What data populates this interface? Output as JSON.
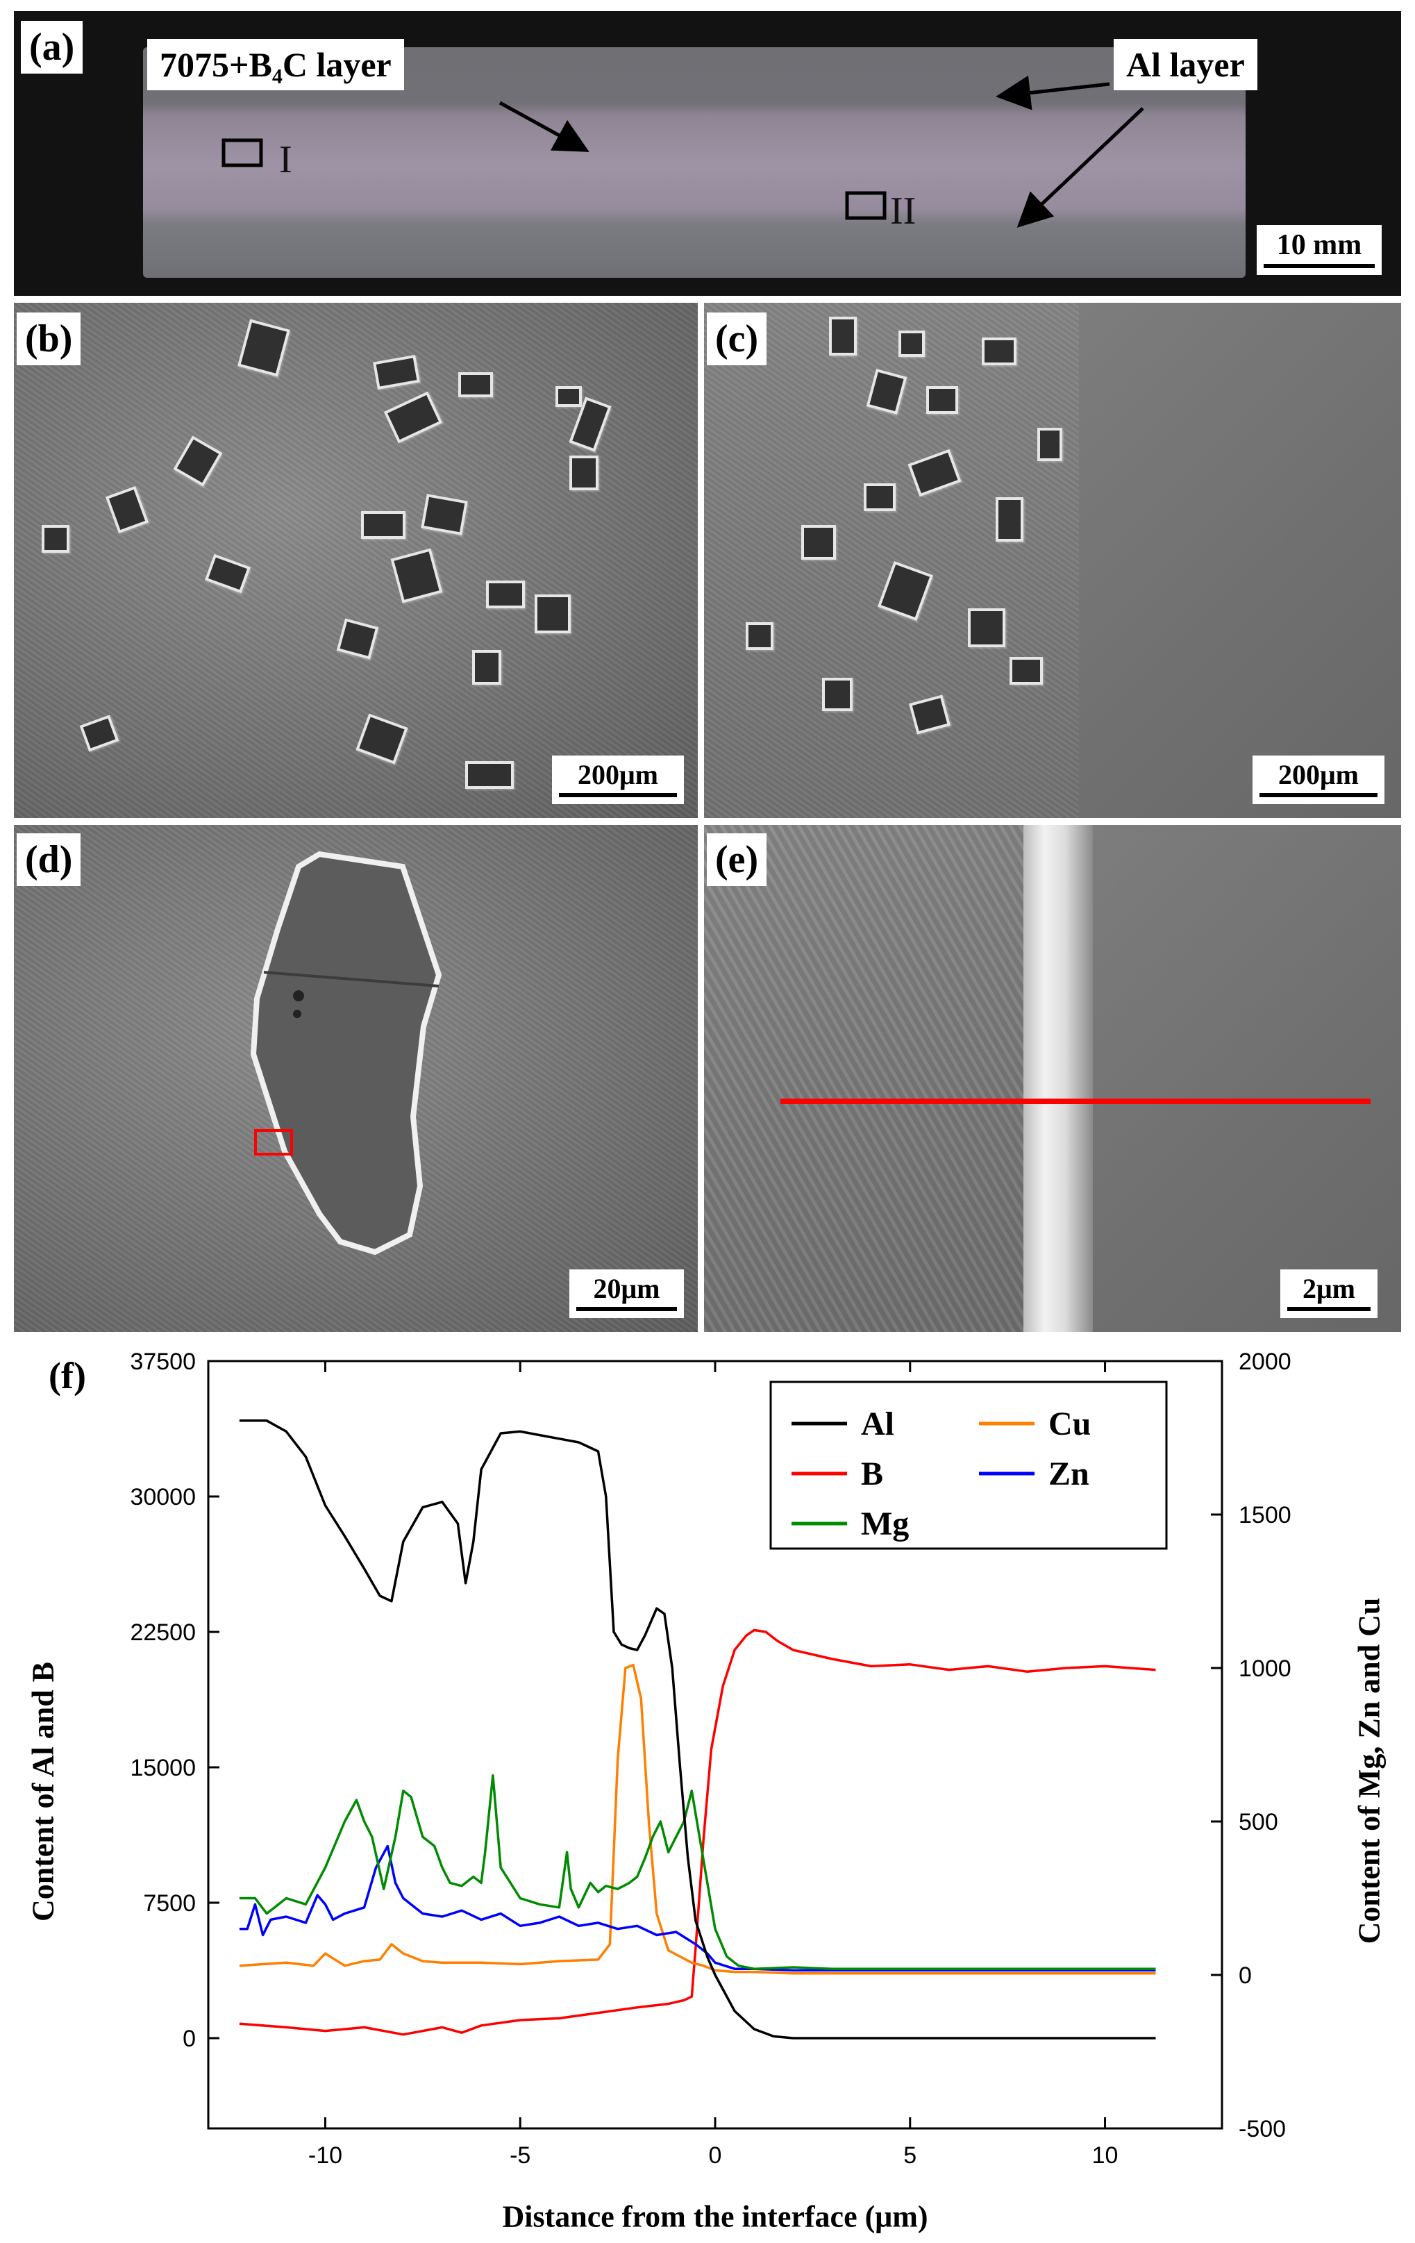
{
  "panels": {
    "a": {
      "label": "(a)",
      "callout_composite": "7075+B₄C layer",
      "callout_al": "Al layer",
      "region_1": "I",
      "region_2": "II",
      "scale": "10 mm"
    },
    "b": {
      "label": "(b)",
      "scale": "200μm"
    },
    "c": {
      "label": "(c)",
      "scale": "200μm"
    },
    "d": {
      "label": "(d)",
      "scale": "20μm"
    },
    "e": {
      "label": "(e)",
      "scale": "2μm"
    },
    "f": {
      "label": "(f)"
    }
  },
  "colors": {
    "Al": "#000000",
    "B": "#ff0000",
    "Cu": "#ff7f00",
    "Zn": "#0000ff",
    "Mg": "#008b00",
    "linescan": "#ff0000"
  },
  "chart_data": {
    "type": "line",
    "xlabel": "Distance from the interface (μm)",
    "ylabel": "Content of Al and B",
    "y2label": "Content of Mg, Zn and Cu",
    "xlim": [
      -13,
      13
    ],
    "ylim": [
      -5000,
      37500
    ],
    "y2lim": [
      -500,
      2000
    ],
    "xticks": [
      -10,
      -5,
      0,
      5,
      10
    ],
    "xtick_labels": [
      "-10",
      "-5",
      "0",
      "5",
      "10"
    ],
    "yticks": [
      0,
      7500,
      15000,
      22500,
      30000,
      37500
    ],
    "ytick_labels": [
      "0",
      "7500",
      "15000",
      "22500",
      "30000",
      "37500"
    ],
    "y2ticks": [
      -500,
      0,
      500,
      1000,
      1500,
      2000
    ],
    "y2tick_labels": [
      "-500",
      "0",
      "500",
      "1000",
      "1500",
      "2000"
    ],
    "legend_position": "top-right",
    "series": [
      {
        "name": "Al",
        "axis": "left",
        "x": [
          -12.2,
          -11.5,
          -11,
          -10.5,
          -10,
          -9.5,
          -9,
          -8.6,
          -8.3,
          -8,
          -7.5,
          -7,
          -6.6,
          -6.4,
          -6.2,
          -6,
          -5.5,
          -5,
          -4.5,
          -4,
          -3.5,
          -3,
          -2.8,
          -2.6,
          -2.4,
          -2.2,
          -2,
          -1.8,
          -1.5,
          -1.3,
          -1.1,
          -0.9,
          -0.7,
          -0.5,
          -0.2,
          0,
          0.5,
          1,
          1.5,
          2,
          3,
          5,
          7,
          9,
          11.3
        ],
        "y": [
          34200,
          34200,
          33600,
          32200,
          29500,
          27800,
          26000,
          24500,
          24200,
          27500,
          29400,
          29700,
          28500,
          25200,
          27500,
          31500,
          33500,
          33600,
          33400,
          33200,
          33000,
          32500,
          30000,
          22500,
          21800,
          21600,
          21500,
          22300,
          23800,
          23500,
          20500,
          15000,
          10000,
          6500,
          4500,
          3500,
          1500,
          500,
          100,
          0,
          0,
          0,
          0,
          0,
          0
        ]
      },
      {
        "name": "B",
        "axis": "left",
        "x": [
          -12.2,
          -11,
          -10,
          -9,
          -8,
          -7,
          -6.5,
          -6,
          -5,
          -4,
          -3,
          -2,
          -1.2,
          -0.8,
          -0.6,
          -0.5,
          -0.3,
          -0.1,
          0.2,
          0.5,
          0.8,
          1,
          1.3,
          1.6,
          2,
          3,
          4,
          5,
          6,
          7,
          8,
          9,
          10,
          11.3
        ],
        "y": [
          800,
          600,
          400,
          600,
          200,
          600,
          300,
          700,
          1000,
          1100,
          1400,
          1700,
          1900,
          2100,
          2300,
          5000,
          11000,
          16000,
          19500,
          21500,
          22300,
          22600,
          22500,
          22000,
          21500,
          21000,
          20600,
          20700,
          20400,
          20600,
          20300,
          20500,
          20600,
          20400
        ]
      },
      {
        "name": "Cu",
        "axis": "right",
        "x": [
          -12.2,
          -11,
          -10.3,
          -10,
          -9.5,
          -9,
          -8.6,
          -8.3,
          -8,
          -7.5,
          -7,
          -6,
          -5,
          -4,
          -3,
          -2.7,
          -2.5,
          -2.3,
          -2.1,
          -1.9,
          -1.7,
          -1.5,
          -1.2,
          -0.9,
          -0.6,
          -0.3,
          0,
          0.5,
          1,
          2,
          3,
          5,
          7,
          9,
          11.3
        ],
        "y": [
          30,
          40,
          30,
          70,
          30,
          45,
          50,
          100,
          70,
          45,
          40,
          40,
          35,
          45,
          50,
          100,
          700,
          1000,
          1010,
          900,
          500,
          200,
          80,
          60,
          40,
          30,
          15,
          10,
          10,
          5,
          5,
          5,
          5,
          5,
          5
        ]
      },
      {
        "name": "Zn",
        "axis": "right",
        "x": [
          -12.2,
          -12,
          -11.8,
          -11.6,
          -11.4,
          -11,
          -10.5,
          -10.2,
          -10,
          -9.8,
          -9.5,
          -9,
          -8.7,
          -8.4,
          -8.2,
          -8,
          -7.5,
          -7,
          -6.5,
          -6,
          -5.5,
          -5,
          -4.5,
          -4,
          -3.5,
          -3,
          -2.5,
          -2,
          -1.5,
          -1,
          -0.5,
          -0.2,
          0,
          0.5,
          1,
          2,
          3,
          5,
          7,
          9,
          11.3
        ],
        "y": [
          150,
          150,
          230,
          130,
          180,
          190,
          170,
          260,
          230,
          180,
          200,
          220,
          350,
          420,
          300,
          250,
          200,
          190,
          210,
          180,
          200,
          160,
          170,
          190,
          160,
          170,
          150,
          160,
          130,
          140,
          100,
          70,
          40,
          20,
          20,
          15,
          15,
          15,
          15,
          15,
          15
        ]
      },
      {
        "name": "Mg",
        "axis": "right",
        "x": [
          -12.2,
          -11.8,
          -11.5,
          -11,
          -10.5,
          -10,
          -9.5,
          -9.2,
          -9,
          -8.8,
          -8.5,
          -8.2,
          -8,
          -7.8,
          -7.5,
          -7.2,
          -7,
          -6.8,
          -6.5,
          -6.2,
          -6,
          -5.9,
          -5.7,
          -5.5,
          -5,
          -4.5,
          -4,
          -3.8,
          -3.7,
          -3.5,
          -3.2,
          -3,
          -2.8,
          -2.5,
          -2.2,
          -2,
          -1.8,
          -1.6,
          -1.4,
          -1.2,
          -1,
          -0.8,
          -0.6,
          -0.4,
          -0.2,
          0,
          0.3,
          0.6,
          1,
          2,
          3,
          5,
          7,
          9,
          11.3
        ],
        "y": [
          250,
          250,
          200,
          250,
          230,
          350,
          500,
          570,
          500,
          450,
          280,
          450,
          600,
          580,
          450,
          420,
          350,
          300,
          290,
          320,
          300,
          400,
          650,
          350,
          250,
          230,
          220,
          400,
          280,
          220,
          300,
          270,
          290,
          280,
          300,
          320,
          380,
          450,
          500,
          400,
          450,
          500,
          600,
          450,
          300,
          150,
          60,
          30,
          20,
          25,
          20,
          20,
          20,
          20,
          20
        ]
      }
    ]
  }
}
